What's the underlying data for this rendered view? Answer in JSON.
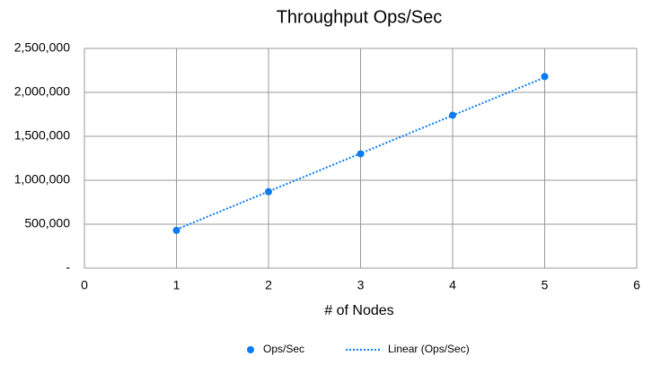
{
  "chart_data": {
    "type": "scatter",
    "title": "Throughput Ops/Sec",
    "x_label": "# of Nodes",
    "xlim": [
      0,
      6
    ],
    "xticks": [
      0,
      1,
      2,
      3,
      4,
      5,
      6
    ],
    "ylim": [
      0,
      2500000
    ],
    "yticks": [
      {
        "value": 0,
        "label": "-"
      },
      {
        "value": 500000,
        "label": "500,000"
      },
      {
        "value": 1000000,
        "label": "1,000,000"
      },
      {
        "value": 1500000,
        "label": "1,500,000"
      },
      {
        "value": 2000000,
        "label": "2,000,000"
      },
      {
        "value": 2500000,
        "label": "2,500,000"
      }
    ],
    "grid": true,
    "legend": "bottom",
    "series": [
      {
        "name": "Ops/Sec",
        "color": "#0a7cf0",
        "style": "marker",
        "x": [
          1,
          2,
          3,
          4,
          5
        ],
        "values": [
          430000,
          870000,
          1300000,
          1740000,
          2180000
        ]
      },
      {
        "name": "Linear (Ops/Sec)",
        "color": "#0a7cf0",
        "style": "dotted",
        "x": [
          1,
          5
        ],
        "values": [
          440000,
          2170000
        ]
      }
    ]
  }
}
